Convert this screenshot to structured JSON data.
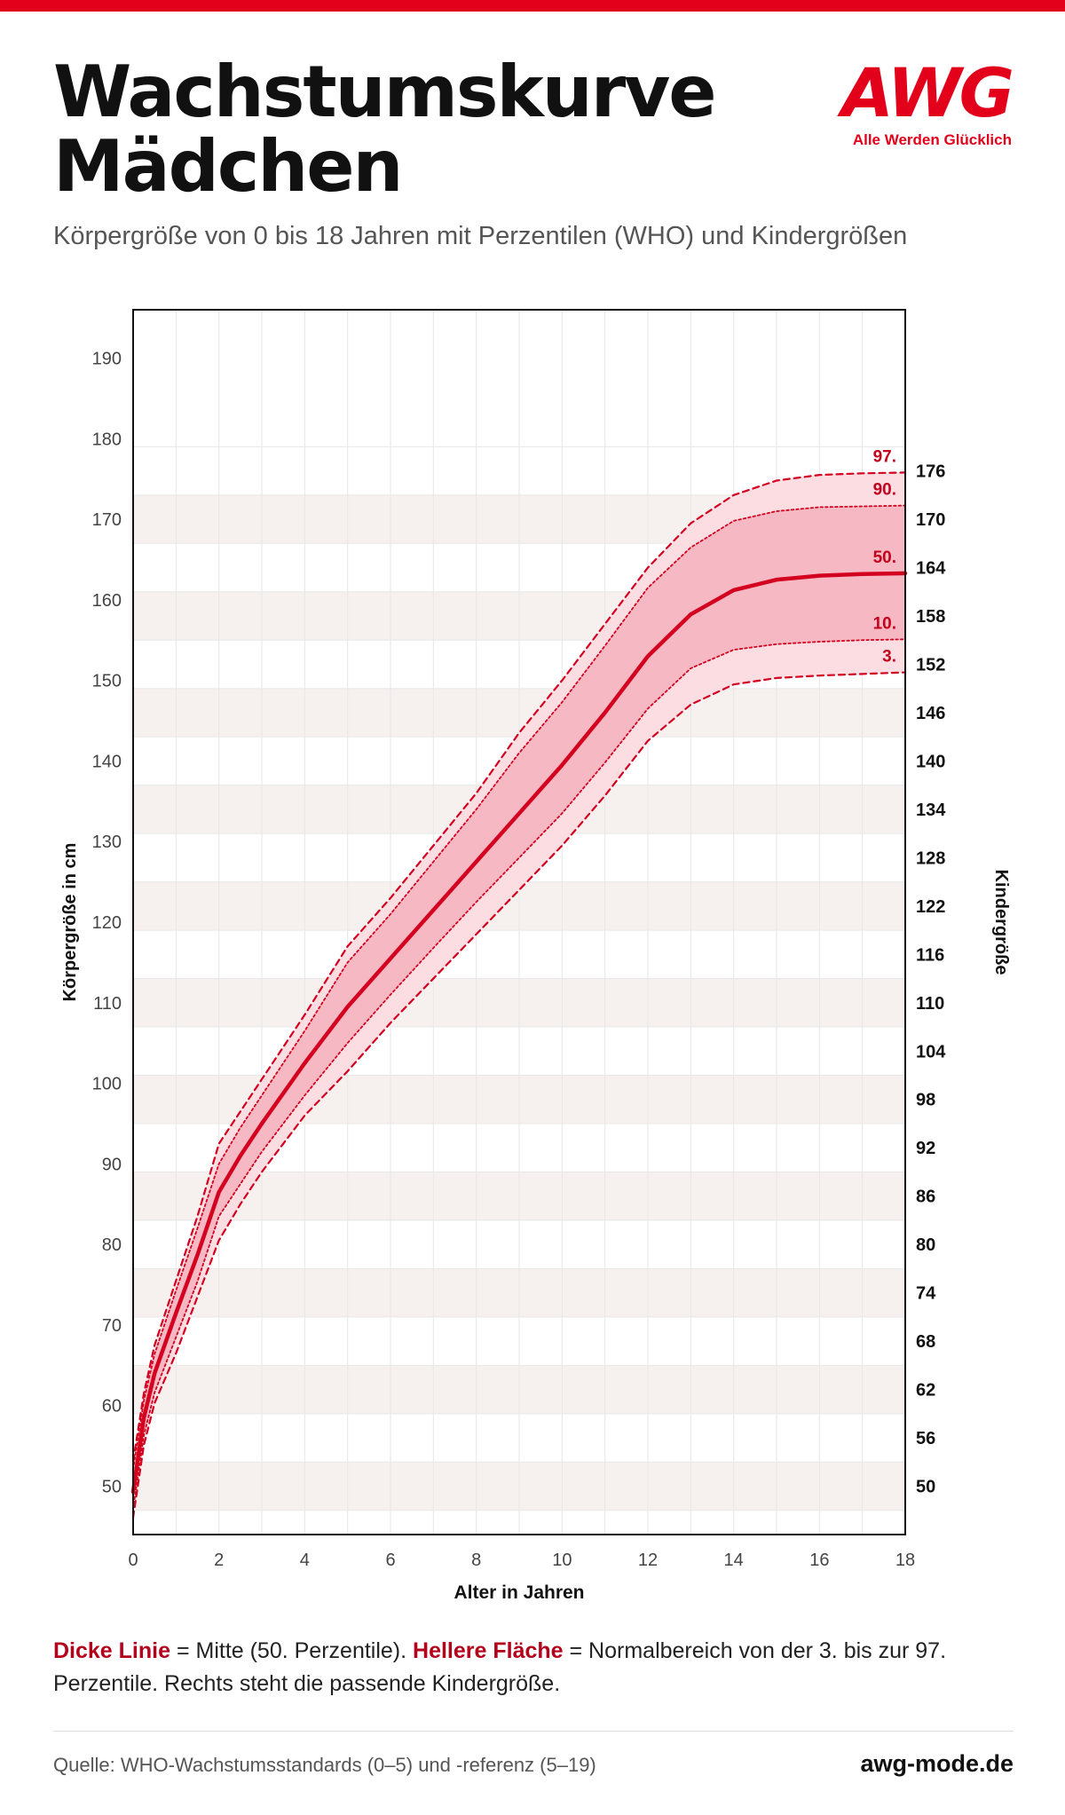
{
  "page": {
    "title_line1": "Wachstumskurve",
    "title_line2": "Mädchen",
    "subtitle": "Körpergröße von 0 bis 18 Jahren mit Perzentilen (WHO) und Kindergrößen",
    "logo_text": "AWG",
    "logo_slogan": "Alle Werden Glücklich",
    "brand_color": "#e3001b"
  },
  "legend": {
    "thick_line_label": "Dicke Linie",
    "thick_line_text": " = Mitte (50. Perzentile). ",
    "light_area_label": "Hellere Fläche",
    "light_area_text": " = Normalbereich von der 3. bis zur 97. Perzentile. Rechts steht die passende Kindergröße."
  },
  "footer": {
    "source": "Quelle: WHO-Wachstumsstandards (0–5) und -referenz (5–19)",
    "website": "awg-mode.de"
  },
  "chart_data": {
    "type": "line",
    "xlabel": "Alter in Jahren",
    "ylabel": "Körpergröße in cm",
    "y2label": "Kindergröße",
    "xlim": [
      0,
      18
    ],
    "ylim": [
      44,
      196
    ],
    "x_ticks": [
      0,
      2,
      4,
      6,
      8,
      10,
      12,
      14,
      16,
      18
    ],
    "y_ticks": [
      50,
      60,
      70,
      80,
      90,
      100,
      110,
      120,
      130,
      140,
      150,
      160,
      170,
      180,
      190
    ],
    "size_ticks": [
      50,
      56,
      62,
      68,
      74,
      80,
      86,
      92,
      98,
      104,
      110,
      116,
      122,
      128,
      134,
      140,
      146,
      152,
      158,
      164,
      170,
      176
    ],
    "grid": true,
    "x": [
      0,
      0.25,
      0.5,
      1,
      1.5,
      2,
      2.5,
      3,
      4,
      5,
      6,
      7,
      8,
      9,
      10,
      11,
      12,
      13,
      14,
      15,
      16,
      17,
      18
    ],
    "series": [
      {
        "name": "97.",
        "style": "dashed",
        "values": [
          53.1,
          61.5,
          67.5,
          75.5,
          83.5,
          92.5,
          96.5,
          100.5,
          108.5,
          117,
          123,
          129.5,
          136,
          143.5,
          150,
          157,
          164,
          169.5,
          173,
          174.8,
          175.5,
          175.7,
          175.8
        ]
      },
      {
        "name": "90.",
        "style": "dotted",
        "values": [
          52.1,
          60.6,
          66.4,
          74.3,
          82,
          90,
          94.5,
          98.5,
          106.5,
          115,
          121,
          127.5,
          134,
          141,
          147.3,
          154.3,
          161.5,
          166.5,
          169.8,
          171,
          171.5,
          171.6,
          171.7
        ]
      },
      {
        "name": "50.",
        "style": "solid",
        "values": [
          49.3,
          58.5,
          64,
          71.5,
          78.7,
          86.5,
          91,
          95,
          102.5,
          109.5,
          115.5,
          121.5,
          127.5,
          133.5,
          139.5,
          146,
          153,
          158.2,
          161.2,
          162.5,
          163,
          163.2,
          163.3
        ]
      },
      {
        "name": "10.",
        "style": "dotted",
        "values": [
          47.2,
          56.3,
          61.6,
          68.5,
          75.4,
          83.5,
          87.5,
          91.5,
          98.5,
          105,
          111,
          116.8,
          122.5,
          128,
          133.5,
          139.8,
          146.5,
          151.5,
          153.8,
          154.5,
          154.8,
          155,
          155.1
        ]
      },
      {
        "name": "3.",
        "style": "dashed",
        "values": [
          46.1,
          55.1,
          60.3,
          66.5,
          73.5,
          80.5,
          85,
          89,
          96,
          101.5,
          107.5,
          113,
          118.5,
          124,
          129.5,
          135.7,
          142.5,
          147,
          149.5,
          150.3,
          150.6,
          150.8,
          151
        ]
      }
    ]
  }
}
